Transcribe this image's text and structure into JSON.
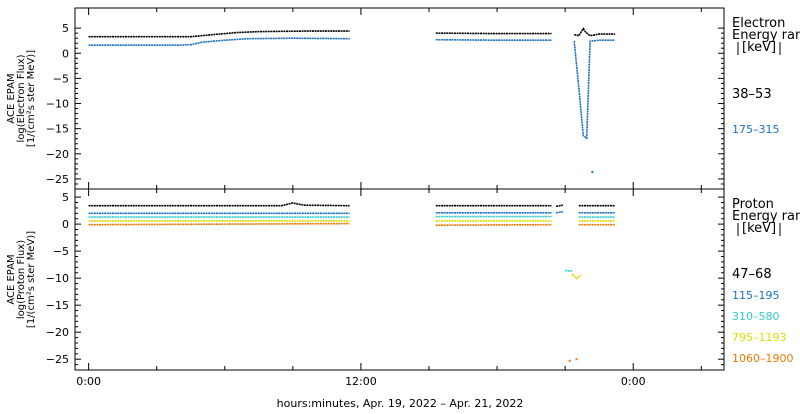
{
  "chart_data": [
    {
      "type": "line",
      "panel": "electron",
      "ylabel_lines": [
        "ACE EPAM",
        "log(Electron Flux)",
        "[1/(cm²s ster MeV)]"
      ],
      "legend_title_lines": [
        "Electron",
        "Energy ran",
        "[keV]"
      ],
      "legend_placement": "right",
      "ylim": [
        -27,
        9
      ],
      "yticks": [
        5,
        0,
        -5,
        -10,
        -15,
        -20,
        -25
      ],
      "ytick_labels": [
        "5",
        "0",
        "−5",
        "−10",
        "−15",
        "−20",
        "−25"
      ],
      "series": [
        {
          "name": "38–53",
          "color": "#000000",
          "segments": [
            [
              [
                0,
                3.3
              ],
              [
                4.5,
                3.3
              ],
              [
                5.5,
                3.7
              ],
              [
                6.5,
                4.1
              ],
              [
                7.5,
                4.3
              ],
              [
                9.5,
                4.4
              ],
              [
                11.5,
                4.4
              ]
            ],
            [
              [
                15.3,
                4.0
              ],
              [
                18.0,
                3.9
              ],
              [
                20.4,
                3.9
              ]
            ],
            [
              [
                21.4,
                3.7
              ],
              [
                21.6,
                3.5
              ],
              [
                21.8,
                4.9
              ],
              [
                21.9,
                4.2
              ],
              [
                22.1,
                3.5
              ],
              [
                22.5,
                3.8
              ],
              [
                23.2,
                3.8
              ]
            ]
          ]
        },
        {
          "name": "175–315",
          "color": "#1a6fc4",
          "segments": [
            [
              [
                0,
                1.6
              ],
              [
                4.0,
                1.6
              ],
              [
                4.5,
                1.7
              ],
              [
                5.0,
                2.2
              ],
              [
                6.0,
                2.6
              ],
              [
                7.0,
                2.9
              ],
              [
                9.0,
                3.0
              ],
              [
                11.5,
                2.9
              ]
            ],
            [
              [
                15.3,
                2.7
              ],
              [
                18.0,
                2.6
              ],
              [
                20.4,
                2.6
              ]
            ],
            [
              [
                21.4,
                2.4
              ],
              [
                21.6,
                -6.8
              ],
              [
                21.8,
                -16.4
              ],
              [
                21.95,
                -16.9
              ],
              [
                22.1,
                2.4
              ],
              [
                22.5,
                2.6
              ],
              [
                23.2,
                2.6
              ]
            ]
          ],
          "outliers": [
            [
              22.2,
              -23.6
            ]
          ]
        }
      ]
    },
    {
      "type": "line",
      "panel": "proton",
      "ylabel_lines": [
        "ACE EPAM",
        "log(Proton Flux)",
        "[1/(cm²s ster MeV)]"
      ],
      "legend_title_lines": [
        "Proton",
        "Energy ran",
        "[keV]"
      ],
      "legend_placement": "right",
      "ylim": [
        -27,
        6.5
      ],
      "yticks": [
        5,
        0,
        -5,
        -10,
        -15,
        -20,
        -25
      ],
      "ytick_labels": [
        "5",
        "0",
        "−5",
        "−10",
        "−15",
        "−20",
        "−25"
      ],
      "xticks": [
        0,
        12,
        24
      ],
      "xtick_labels": [
        "0:00",
        "12:00",
        "0:00"
      ],
      "xlim": [
        -0.6,
        28.0
      ],
      "xlabel": "hours:minutes, Apr. 19, 2022 – Apr. 21, 2022",
      "series": [
        {
          "name": "47–68",
          "color": "#000000",
          "segments": [
            [
              [
                0,
                3.4
              ],
              [
                8.5,
                3.4
              ],
              [
                9.0,
                3.9
              ],
              [
                9.5,
                3.5
              ],
              [
                11.5,
                3.4
              ]
            ],
            [
              [
                15.3,
                3.4
              ],
              [
                20.4,
                3.4
              ]
            ],
            [
              [
                20.6,
                3.3
              ],
              [
                20.9,
                3.5
              ]
            ],
            [
              [
                21.6,
                3.4
              ],
              [
                23.2,
                3.4
              ]
            ]
          ]
        },
        {
          "name": "115–195",
          "color": "#1a6fc4",
          "segments": [
            [
              [
                0,
                2.0
              ],
              [
                11.5,
                2.0
              ]
            ],
            [
              [
                15.3,
                2.1
              ],
              [
                20.4,
                2.1
              ]
            ],
            [
              [
                20.6,
                2.1
              ],
              [
                20.9,
                2.3
              ]
            ],
            [
              [
                21.6,
                2.1
              ],
              [
                23.2,
                2.1
              ]
            ]
          ]
        },
        {
          "name": "310–580",
          "color": "#33cccc",
          "segments": [
            [
              [
                0,
                1.3
              ],
              [
                11.5,
                1.3
              ]
            ],
            [
              [
                15.3,
                1.4
              ],
              [
                20.4,
                1.4
              ]
            ],
            [
              [
                21.0,
                -8.6
              ],
              [
                21.3,
                -8.7
              ]
            ],
            [
              [
                21.6,
                1.3
              ],
              [
                23.2,
                1.3
              ]
            ]
          ]
        },
        {
          "name": "795–1193",
          "color": "#dddd00",
          "segments": [
            [
              [
                0,
                0.6
              ],
              [
                11.5,
                0.6
              ]
            ],
            [
              [
                15.3,
                0.6
              ],
              [
                20.4,
                0.6
              ]
            ],
            [
              [
                21.3,
                -9.2
              ],
              [
                21.5,
                -10.1
              ],
              [
                21.7,
                -9.4
              ]
            ],
            [
              [
                21.6,
                0.6
              ],
              [
                23.2,
                0.6
              ]
            ]
          ]
        },
        {
          "name": "1060–1900",
          "color": "#ee7700",
          "segments": [
            [
              [
                0,
                -0.1
              ],
              [
                11.5,
                0.1
              ]
            ],
            [
              [
                15.3,
                -0.2
              ],
              [
                20.4,
                -0.1
              ]
            ],
            [
              [
                21.6,
                -0.1
              ],
              [
                23.2,
                -0.1
              ]
            ]
          ],
          "outliers": [
            [
              21.2,
              -25.3
            ],
            [
              21.5,
              -25.0
            ]
          ]
        }
      ]
    }
  ]
}
